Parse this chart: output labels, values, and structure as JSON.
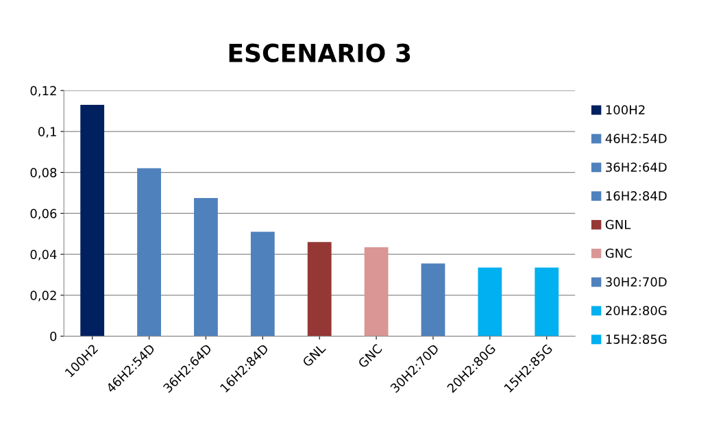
{
  "chart_data": {
    "type": "bar",
    "title": "ESCENARIO 3",
    "categories": [
      "100H2",
      "46H2:54D",
      "36H2:64D",
      "16H2:84D",
      "GNL",
      "GNC",
      "30H2:70D",
      "20H2:80G",
      "15H2:85G"
    ],
    "series": [
      {
        "name": "100H2",
        "color": "#002060",
        "values": [
          0.113,
          null,
          null,
          null,
          null,
          null,
          null,
          null,
          null
        ]
      },
      {
        "name": "46H2:54D",
        "color": "#4f81bd",
        "values": [
          null,
          0.082,
          null,
          null,
          null,
          null,
          null,
          null,
          null
        ]
      },
      {
        "name": "36H2:64D",
        "color": "#4f81bd",
        "values": [
          null,
          null,
          0.0675,
          null,
          null,
          null,
          null,
          null,
          null
        ]
      },
      {
        "name": "16H2:84D",
        "color": "#4f81bd",
        "values": [
          null,
          null,
          null,
          0.051,
          null,
          null,
          null,
          null,
          null
        ]
      },
      {
        "name": "GNL",
        "color": "#953735",
        "values": [
          null,
          null,
          null,
          null,
          0.046,
          null,
          null,
          null,
          null
        ]
      },
      {
        "name": "GNC",
        "color": "#d99694",
        "values": [
          null,
          null,
          null,
          null,
          null,
          0.0435,
          null,
          null,
          null
        ]
      },
      {
        "name": "30H2:70D",
        "color": "#4f81bd",
        "values": [
          null,
          null,
          null,
          null,
          null,
          null,
          0.0355,
          null,
          null
        ]
      },
      {
        "name": "20H2:80G",
        "color": "#00b0f0",
        "values": [
          null,
          null,
          null,
          null,
          null,
          null,
          null,
          0.0335,
          null
        ]
      },
      {
        "name": "15H2:85G",
        "color": "#00b0f0",
        "values": [
          null,
          null,
          null,
          null,
          null,
          null,
          null,
          null,
          0.0335
        ]
      }
    ],
    "ylim": [
      0,
      0.12
    ],
    "yticks": [
      {
        "value": 0,
        "label": "0"
      },
      {
        "value": 0.02,
        "label": "0,02"
      },
      {
        "value": 0.04,
        "label": "0,04"
      },
      {
        "value": 0.06,
        "label": "0,06"
      },
      {
        "value": 0.08,
        "label": "0,08"
      },
      {
        "value": 0.1,
        "label": "0,1"
      },
      {
        "value": 0.12,
        "label": "0,12"
      }
    ],
    "grid": "y",
    "legend": "right"
  }
}
